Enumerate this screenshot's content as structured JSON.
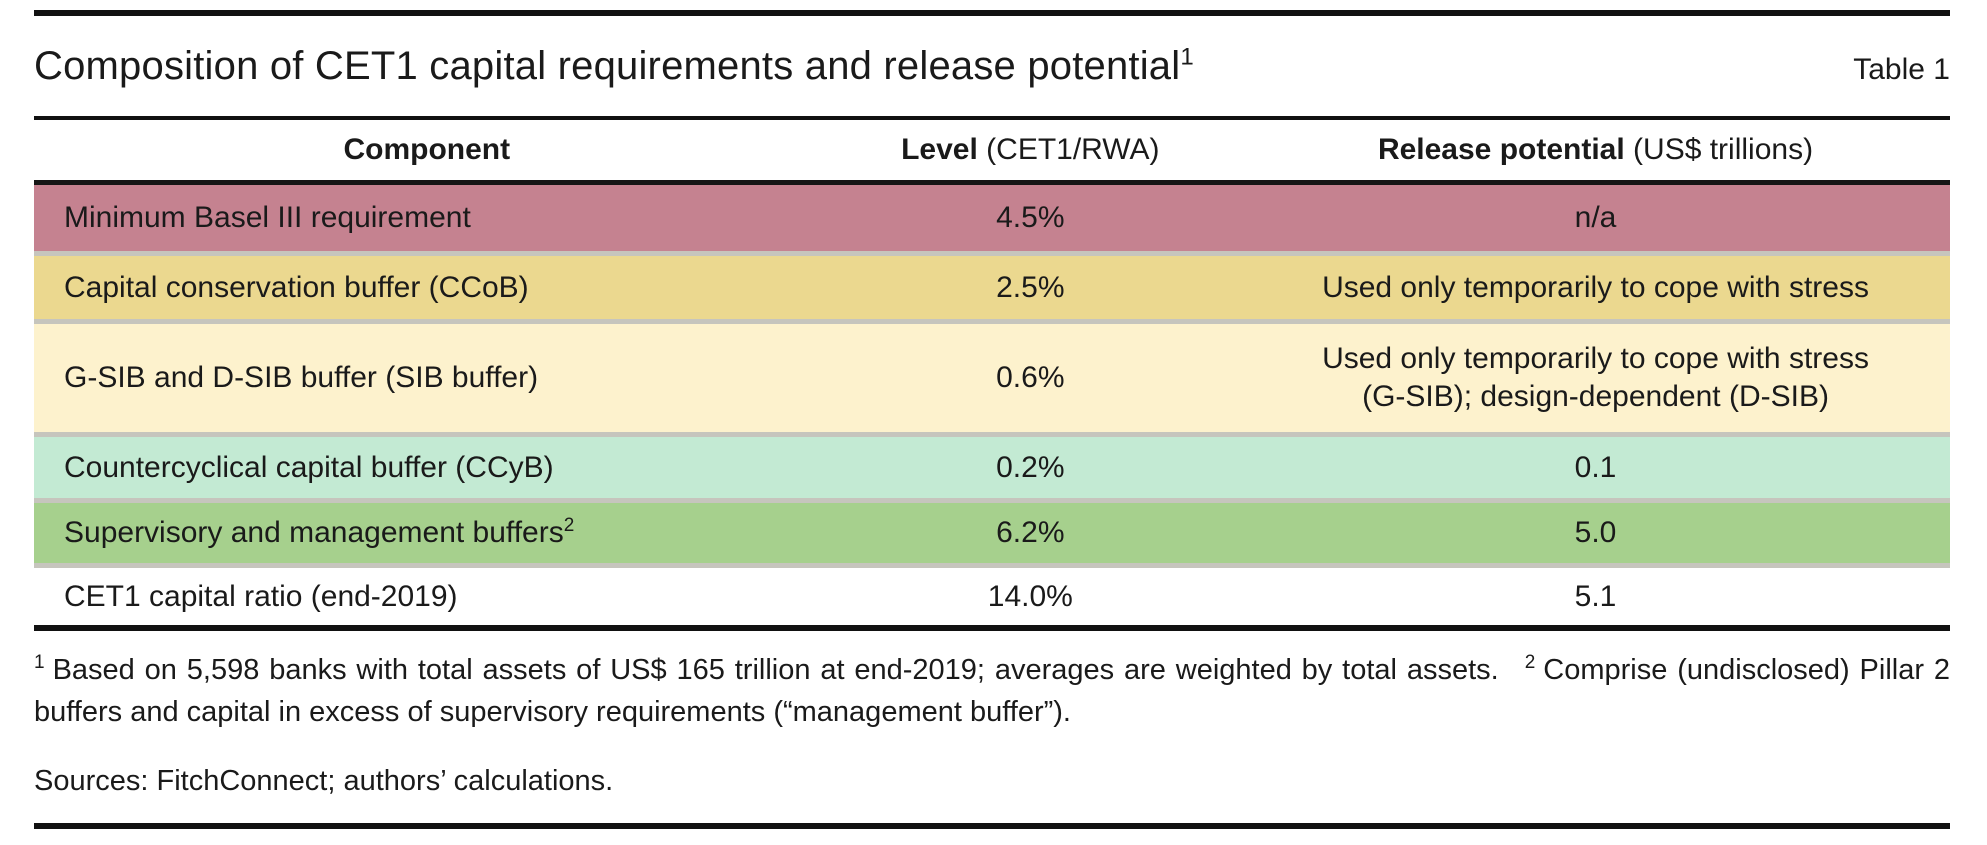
{
  "page": {
    "title": "Composition of CET1 capital requirements and release potential",
    "title_superscript": "1",
    "table_label": "Table 1"
  },
  "colors": {
    "row_minimum_basel": "#c5８290",
    "rule_black": "#111111",
    "row_separator_gray": "#c6c5bd"
  },
  "table": {
    "header": {
      "component": "Component",
      "level_bold": "Level",
      "level_sub": " (CET1/RWA)",
      "release_bold": "Release potential",
      "release_sub": " (US$ trillions)"
    },
    "rows": [
      {
        "component": "Minimum Basel III requirement",
        "level": "4.5%",
        "release": "n/a",
        "bg": "#c58290"
      },
      {
        "component": "Capital conservation buffer (CCoB)",
        "level": "2.5%",
        "release": "Used only temporarily to cope with stress",
        "bg": "#ebd88f"
      },
      {
        "component": "G-SIB and D-SIB buffer (SIB buffer)",
        "level": "0.6%",
        "release_line1": "Used only temporarily to cope with stress",
        "release_line2": "(G-SIB); design-dependent (D-SIB)",
        "bg": "#fdf2cd"
      },
      {
        "component": "Countercyclical capital buffer (CCyB)",
        "level": "0.2%",
        "release": "0.1",
        "bg": "#c3ead3"
      },
      {
        "component": "Supervisory and management buffers",
        "component_sup": "2",
        "level": "6.2%",
        "release": "5.0",
        "bg": "#a6d08d"
      },
      {
        "component": "CET1 capital ratio (end-2019)",
        "level": "14.0%",
        "release": "5.1",
        "bg": "#ffffff"
      }
    ]
  },
  "footnotes": {
    "fn1_sup": "1",
    "fn1_text": "Based on 5,598 banks with total assets of US$ 165 trillion at end-2019; averages are weighted by total assets.",
    "fn2_sup": "2",
    "fn2_text": "Comprise (undisclosed) Pillar 2 buffers and capital in excess of supervisory requirements (“management buffer”)."
  },
  "sources": "Sources: FitchConnect; authors’ calculations."
}
